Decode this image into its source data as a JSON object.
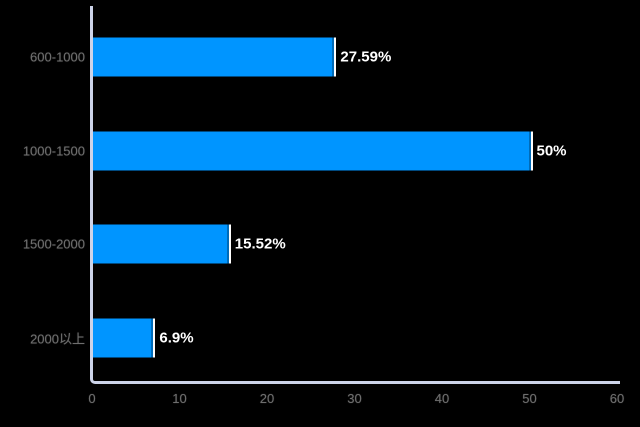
{
  "chart_data": {
    "type": "bar",
    "orientation": "horizontal",
    "title": "",
    "xlabel": "",
    "ylabel": "",
    "categories": [
      "600-1000",
      "1000-1500",
      "1500-2000",
      "2000以上"
    ],
    "values": [
      27.59,
      50,
      15.52,
      6.9
    ],
    "data_labels": [
      "27.59%",
      "50%",
      "15.52%",
      "6.9%"
    ],
    "x_ticks": [
      "0",
      "10",
      "20",
      "30",
      "40",
      "50",
      "60"
    ],
    "x_tick_values": [
      0,
      10,
      20,
      30,
      40,
      50,
      60
    ],
    "xlim": [
      0,
      60
    ],
    "grid": false,
    "legend": "none",
    "colors": {
      "bar": "#0095ff",
      "bar_border": "#ffffff",
      "axis_line": "#ccd3e8",
      "axis_label": "#6e6e6e",
      "data_label": "#ffffff",
      "background": "#000000"
    }
  }
}
